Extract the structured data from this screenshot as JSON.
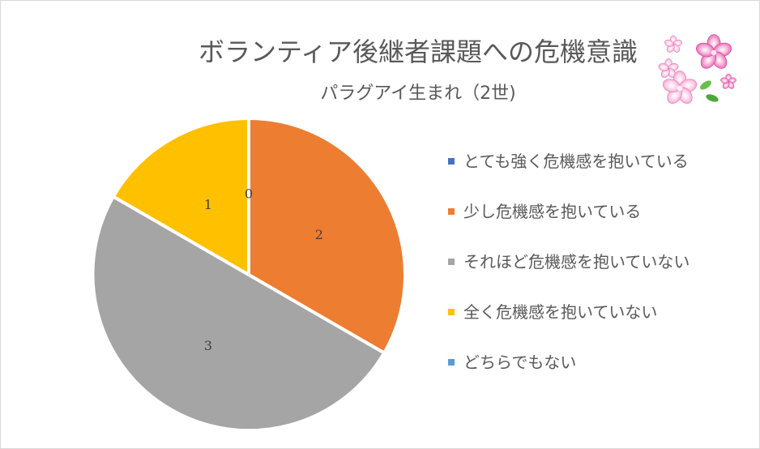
{
  "chart_data": {
    "type": "pie",
    "title": "ボランティア後継者課題への危機意識",
    "subtitle": "パラグアイ生まれ（2世)",
    "categories": [
      "とても強く危機感を抱いている",
      "少し危機感を抱いている",
      "それほど危機感を抱いていない",
      "全く危機感を抱いていない",
      "どちらでもない"
    ],
    "values": [
      0,
      2,
      3,
      1,
      0
    ],
    "colors": [
      "#4472C4",
      "#ED7D31",
      "#A5A5A5",
      "#FFC000",
      "#5B9BD5"
    ],
    "legend_position": "right",
    "data_labels": true
  },
  "decoration": {
    "icon": "sakura-flowers-icon"
  }
}
